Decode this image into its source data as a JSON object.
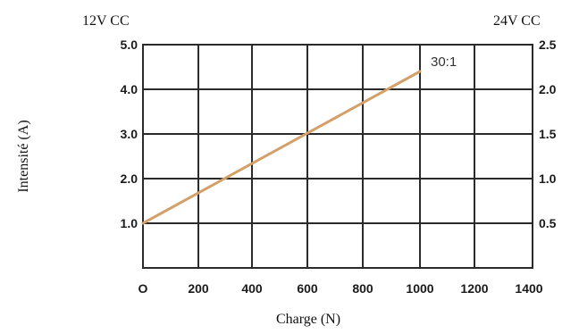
{
  "chart_data": {
    "type": "line",
    "title": "",
    "xlabel": "Charge (N)",
    "ylabel": "Intensité (A)",
    "left_axis_header": "12V CC",
    "right_axis_header": "24V CC",
    "xlim": [
      0,
      1400
    ],
    "ylim": [
      0,
      5.0
    ],
    "y2lim": [
      0,
      2.5
    ],
    "x_ticks": [
      "O",
      "200",
      "400",
      "600",
      "800",
      "1000",
      "1200",
      "1400"
    ],
    "y_ticks_left": [
      "1.0",
      "2.0",
      "3.0",
      "4.0",
      "5.0"
    ],
    "y_ticks_right": [
      "0.5",
      "1.0",
      "1.5",
      "2.0",
      "2.5"
    ],
    "grid": true,
    "series": [
      {
        "name": "30:1",
        "color": "#d4a06a",
        "x": [
          0,
          1000
        ],
        "y": [
          1.0,
          4.4
        ]
      }
    ]
  }
}
